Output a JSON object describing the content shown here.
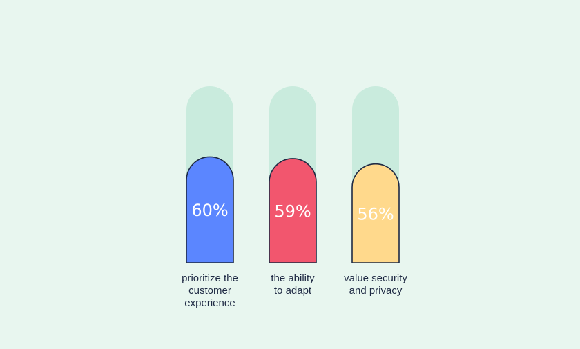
{
  "chart_data": {
    "type": "bar",
    "orientation": "vertical",
    "ylim": [
      0,
      100
    ],
    "track_color": "#c9ebdd",
    "outline_color": "#1f2a44",
    "label_color": "#ffffff",
    "caption_color": "#1f2a44",
    "bars": [
      {
        "value": 60,
        "value_label": "60%",
        "caption_lines": [
          "prioritize the",
          "customer",
          "experience"
        ],
        "color": "#5b86ff"
      },
      {
        "value": 59,
        "value_label": "59%",
        "caption_lines": [
          "the ability",
          "to adapt"
        ],
        "color": "#f2566e"
      },
      {
        "value": 56,
        "value_label": "56%",
        "caption_lines": [
          "value security",
          "and privacy"
        ],
        "color": "#ffd98c"
      }
    ]
  }
}
